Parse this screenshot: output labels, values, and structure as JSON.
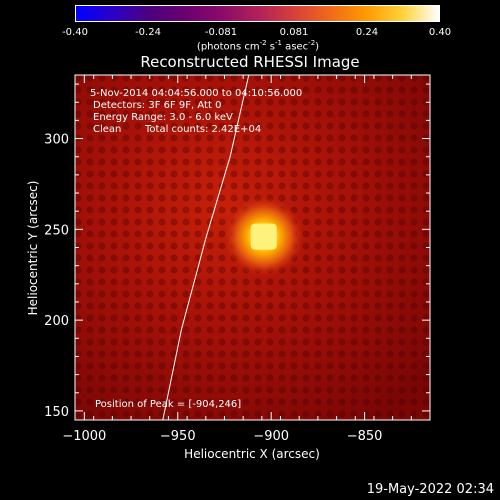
{
  "colorbar": {
    "ticks": [
      "-0.40",
      "-0.24",
      "-0.081",
      "0.081",
      "0.24",
      "0.40"
    ],
    "units": "(photons cm",
    "units_exp1": "-2",
    "units_mid": " s",
    "units_exp2": "-1",
    "units_mid2": " asec",
    "units_exp3": "-2",
    "units_end": ")",
    "range": [
      -0.4,
      0.4
    ]
  },
  "chart_data": {
    "type": "heatmap",
    "title": "Reconstructed RHESSI Image",
    "xlabel": "Heliocentric X (arcsec)",
    "ylabel": "Heliocentric Y (arcsec)",
    "xlim": [
      -1005,
      -815
    ],
    "ylim": [
      145,
      335
    ],
    "x_ticks": [
      -1000,
      -950,
      -900,
      -850
    ],
    "y_ticks": [
      150,
      200,
      250,
      300
    ],
    "x_tick_labels": [
      "−1000",
      "−950",
      "−900",
      "−850"
    ],
    "y_tick_labels": [
      "150",
      "200",
      "250",
      "300"
    ],
    "peak": {
      "x": -904,
      "y": 246,
      "intensity": 0.4
    },
    "limb_curve": [
      [
        -958,
        145
      ],
      [
        -948,
        195
      ],
      [
        -935,
        245
      ],
      [
        -922,
        290
      ],
      [
        -912,
        335
      ]
    ],
    "annotations": {
      "time": "5-Nov-2014 04:04:56.000 to 04:10:56.000",
      "detectors": "Detectors: 3F 6F 9F, Att 0",
      "energy": "Energy Range: 3.0 - 6.0 keV",
      "method": "Clean",
      "counts": "Total counts: 2.42E+04",
      "peak_label": "Position of Peak = [-904,246]"
    }
  },
  "footer": {
    "timestamp": "19-May-2022 02:34"
  }
}
